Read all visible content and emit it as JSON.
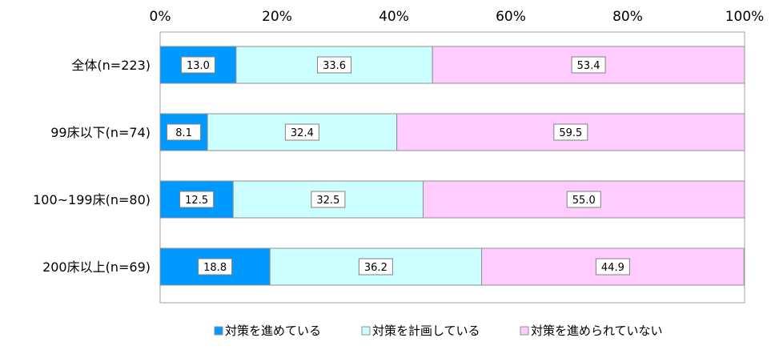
{
  "chart_data": {
    "type": "bar",
    "orientation": "horizontal",
    "stacked": true,
    "percent_axis": true,
    "xlim": [
      0,
      100
    ],
    "x_ticks": [
      "0%",
      "20%",
      "40%",
      "60%",
      "80%",
      "100%"
    ],
    "categories": [
      "全体(n=223)",
      "99床以下(n=74)",
      "100~199床(n=80)",
      "200床以上(n=69)"
    ],
    "series": [
      {
        "name": "対策を進めている",
        "color": "#0099FF",
        "values": [
          13.0,
          8.1,
          12.5,
          18.8
        ],
        "labels": [
          "13.0",
          "8.1",
          "12.5",
          "18.8"
        ]
      },
      {
        "name": "対策を計画している",
        "color": "#CCFFFF",
        "values": [
          33.6,
          32.4,
          32.5,
          36.2
        ],
        "labels": [
          "33.6",
          "32.4",
          "32.5",
          "36.2"
        ]
      },
      {
        "name": "対策を進められていない",
        "color": "#FFCCFF",
        "values": [
          53.4,
          59.5,
          55.0,
          44.9
        ],
        "labels": [
          "53.4",
          "59.5",
          "55.0",
          "44.9"
        ]
      }
    ],
    "legend_position": "bottom",
    "grid": false
  }
}
